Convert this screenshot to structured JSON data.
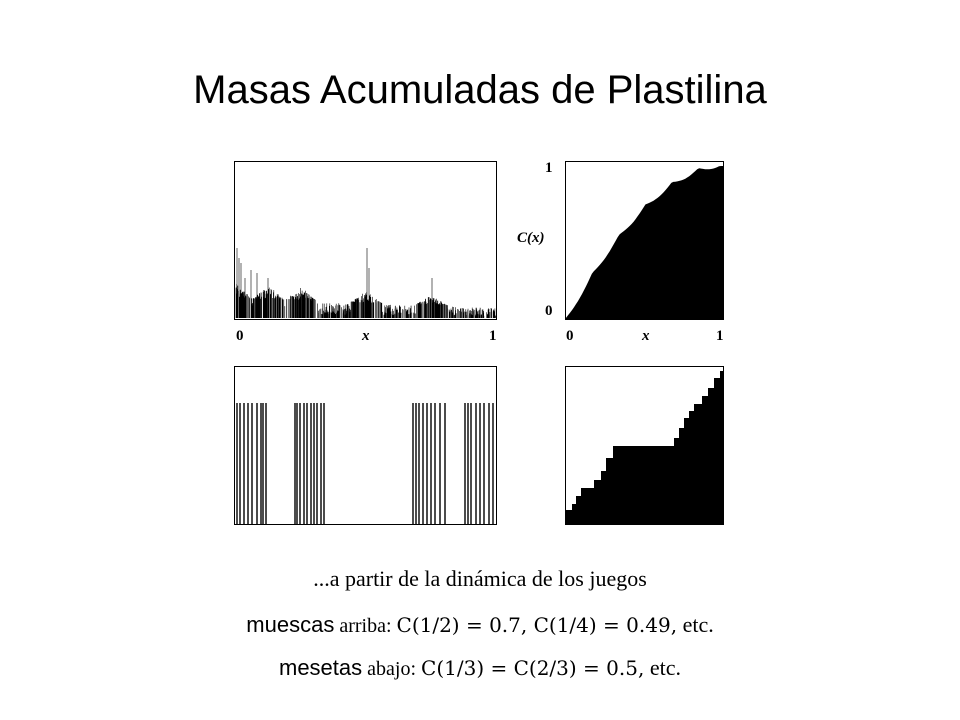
{
  "title": "Masas Acumuladas de Plastilina",
  "panels": {
    "top_left": {
      "x_start": "0",
      "x_label": "x",
      "x_end": "1"
    },
    "top_right": {
      "y_top": "1",
      "y_label": "C(x)",
      "y_bottom": "0",
      "x_start": "0",
      "x_label": "x",
      "x_end": "1"
    },
    "bottom_left": {},
    "bottom_right": {}
  },
  "caption": {
    "line1": "...a partir de la dinámica de los juegos",
    "line2": {
      "keyword": "muescas",
      "rest": " arriba: ",
      "math": "C(1/2) = 0.7,  C(1/4) = 0.49,",
      "tail": " etc."
    },
    "line3": {
      "keyword": "mesetas",
      "rest": " abajo: ",
      "math": "C(1/3) = C(2/3) = 0.5,",
      "tail": " etc."
    }
  }
}
